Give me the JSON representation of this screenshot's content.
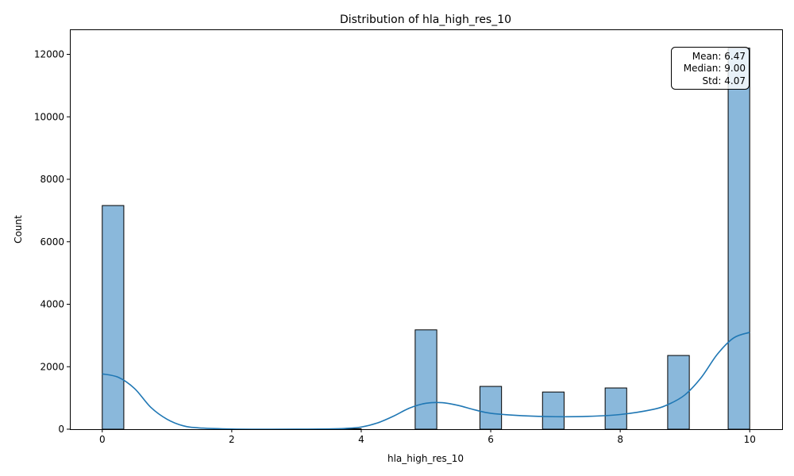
{
  "chart_data": {
    "type": "bar",
    "title": "Distribution of hla_high_res_10",
    "xlabel": "hla_high_res_10",
    "ylabel": "Count",
    "xlim": [
      -0.5,
      10.5
    ],
    "ylim": [
      0,
      12800
    ],
    "xticks": [
      0,
      2,
      4,
      6,
      8,
      10
    ],
    "yticks": [
      0,
      2000,
      4000,
      6000,
      8000,
      10000,
      12000
    ],
    "grid": false,
    "bins": [
      {
        "x0": 0.0,
        "x1": 0.333,
        "count": 7160
      },
      {
        "x0": 3.667,
        "x1": 4.0,
        "count": 15
      },
      {
        "x0": 4.833,
        "x1": 5.167,
        "count": 3180
      },
      {
        "x0": 5.833,
        "x1": 6.167,
        "count": 1370
      },
      {
        "x0": 6.8,
        "x1": 7.133,
        "count": 1190
      },
      {
        "x0": 7.767,
        "x1": 8.1,
        "count": 1320
      },
      {
        "x0": 8.733,
        "x1": 9.067,
        "count": 2360
      },
      {
        "x0": 9.667,
        "x1": 10.0,
        "count": 12200
      }
    ],
    "kde": {
      "x": [
        0,
        0.25,
        0.5,
        0.75,
        1,
        1.25,
        1.5,
        2,
        2.5,
        3,
        3.5,
        3.75,
        4,
        4.25,
        4.5,
        4.75,
        5,
        5.25,
        5.5,
        5.75,
        6,
        6.5,
        7,
        7.5,
        8,
        8.5,
        8.75,
        9,
        9.25,
        9.5,
        9.75,
        10
      ],
      "y": [
        1770,
        1660,
        1300,
        700,
        320,
        110,
        40,
        5,
        0,
        2,
        8,
        25,
        70,
        200,
        420,
        680,
        830,
        850,
        760,
        620,
        510,
        430,
        400,
        410,
        470,
        630,
        800,
        1100,
        1650,
        2400,
        2920,
        3100
      ]
    },
    "bar_color": "#8ab8db",
    "edge_color": "#000000",
    "kde_color": "#1f77b4",
    "stats": {
      "mean": "Mean: 6.47",
      "median": "Median: 9.00",
      "std": "Std: 4.07"
    }
  }
}
